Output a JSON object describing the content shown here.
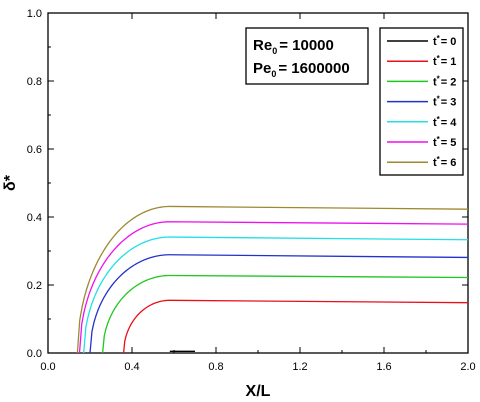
{
  "chart_data": {
    "type": "line",
    "xlabel": "X/L",
    "ylabel": "δ*",
    "xlim": [
      0.0,
      2.0
    ],
    "ylim": [
      0.0,
      1.0
    ],
    "xticks": [
      "0.0",
      "0.4",
      "0.8",
      "1.2",
      "1.6",
      "2.0"
    ],
    "yticks": [
      "0.0",
      "0.2",
      "0.4",
      "0.6",
      "0.8",
      "1.0"
    ],
    "annotation": {
      "re_label": "Re",
      "re_sub": "0",
      "re_value": "= 10000",
      "pe_label": "Pe",
      "pe_sub": "0",
      "pe_value": "= 1600000"
    },
    "legend_position": "top-right",
    "series": [
      {
        "name": "t* = 0",
        "legend_t": "t",
        "legend_val": "= 0",
        "color": "#000000",
        "x_start": 0.58,
        "y_plateau": 0.005,
        "y_end": 0.005
      },
      {
        "name": "t* = 1",
        "legend_t": "t",
        "legend_val": "= 1",
        "color": "#e8101a",
        "x_start": 0.36,
        "y_plateau": 0.155,
        "y_end": 0.148
      },
      {
        "name": "t* = 2",
        "legend_t": "t",
        "legend_val": "= 2",
        "color": "#1ec81e",
        "x_start": 0.26,
        "y_plateau": 0.228,
        "y_end": 0.222
      },
      {
        "name": "t* = 3",
        "legend_t": "t",
        "legend_val": "= 3",
        "color": "#2233cc",
        "x_start": 0.2,
        "y_plateau": 0.289,
        "y_end": 0.281
      },
      {
        "name": "t* = 4",
        "legend_t": "t",
        "legend_val": "= 4",
        "color": "#22e0e6",
        "x_start": 0.17,
        "y_plateau": 0.341,
        "y_end": 0.333
      },
      {
        "name": "t* = 5",
        "legend_t": "t",
        "legend_val": "= 5",
        "color": "#ee11ee",
        "x_start": 0.15,
        "y_plateau": 0.386,
        "y_end": 0.379
      },
      {
        "name": "t* = 6",
        "legend_t": "t",
        "legend_val": "= 6",
        "color": "#9c8a30",
        "x_start": 0.14,
        "y_plateau": 0.431,
        "y_end": 0.423
      }
    ]
  }
}
